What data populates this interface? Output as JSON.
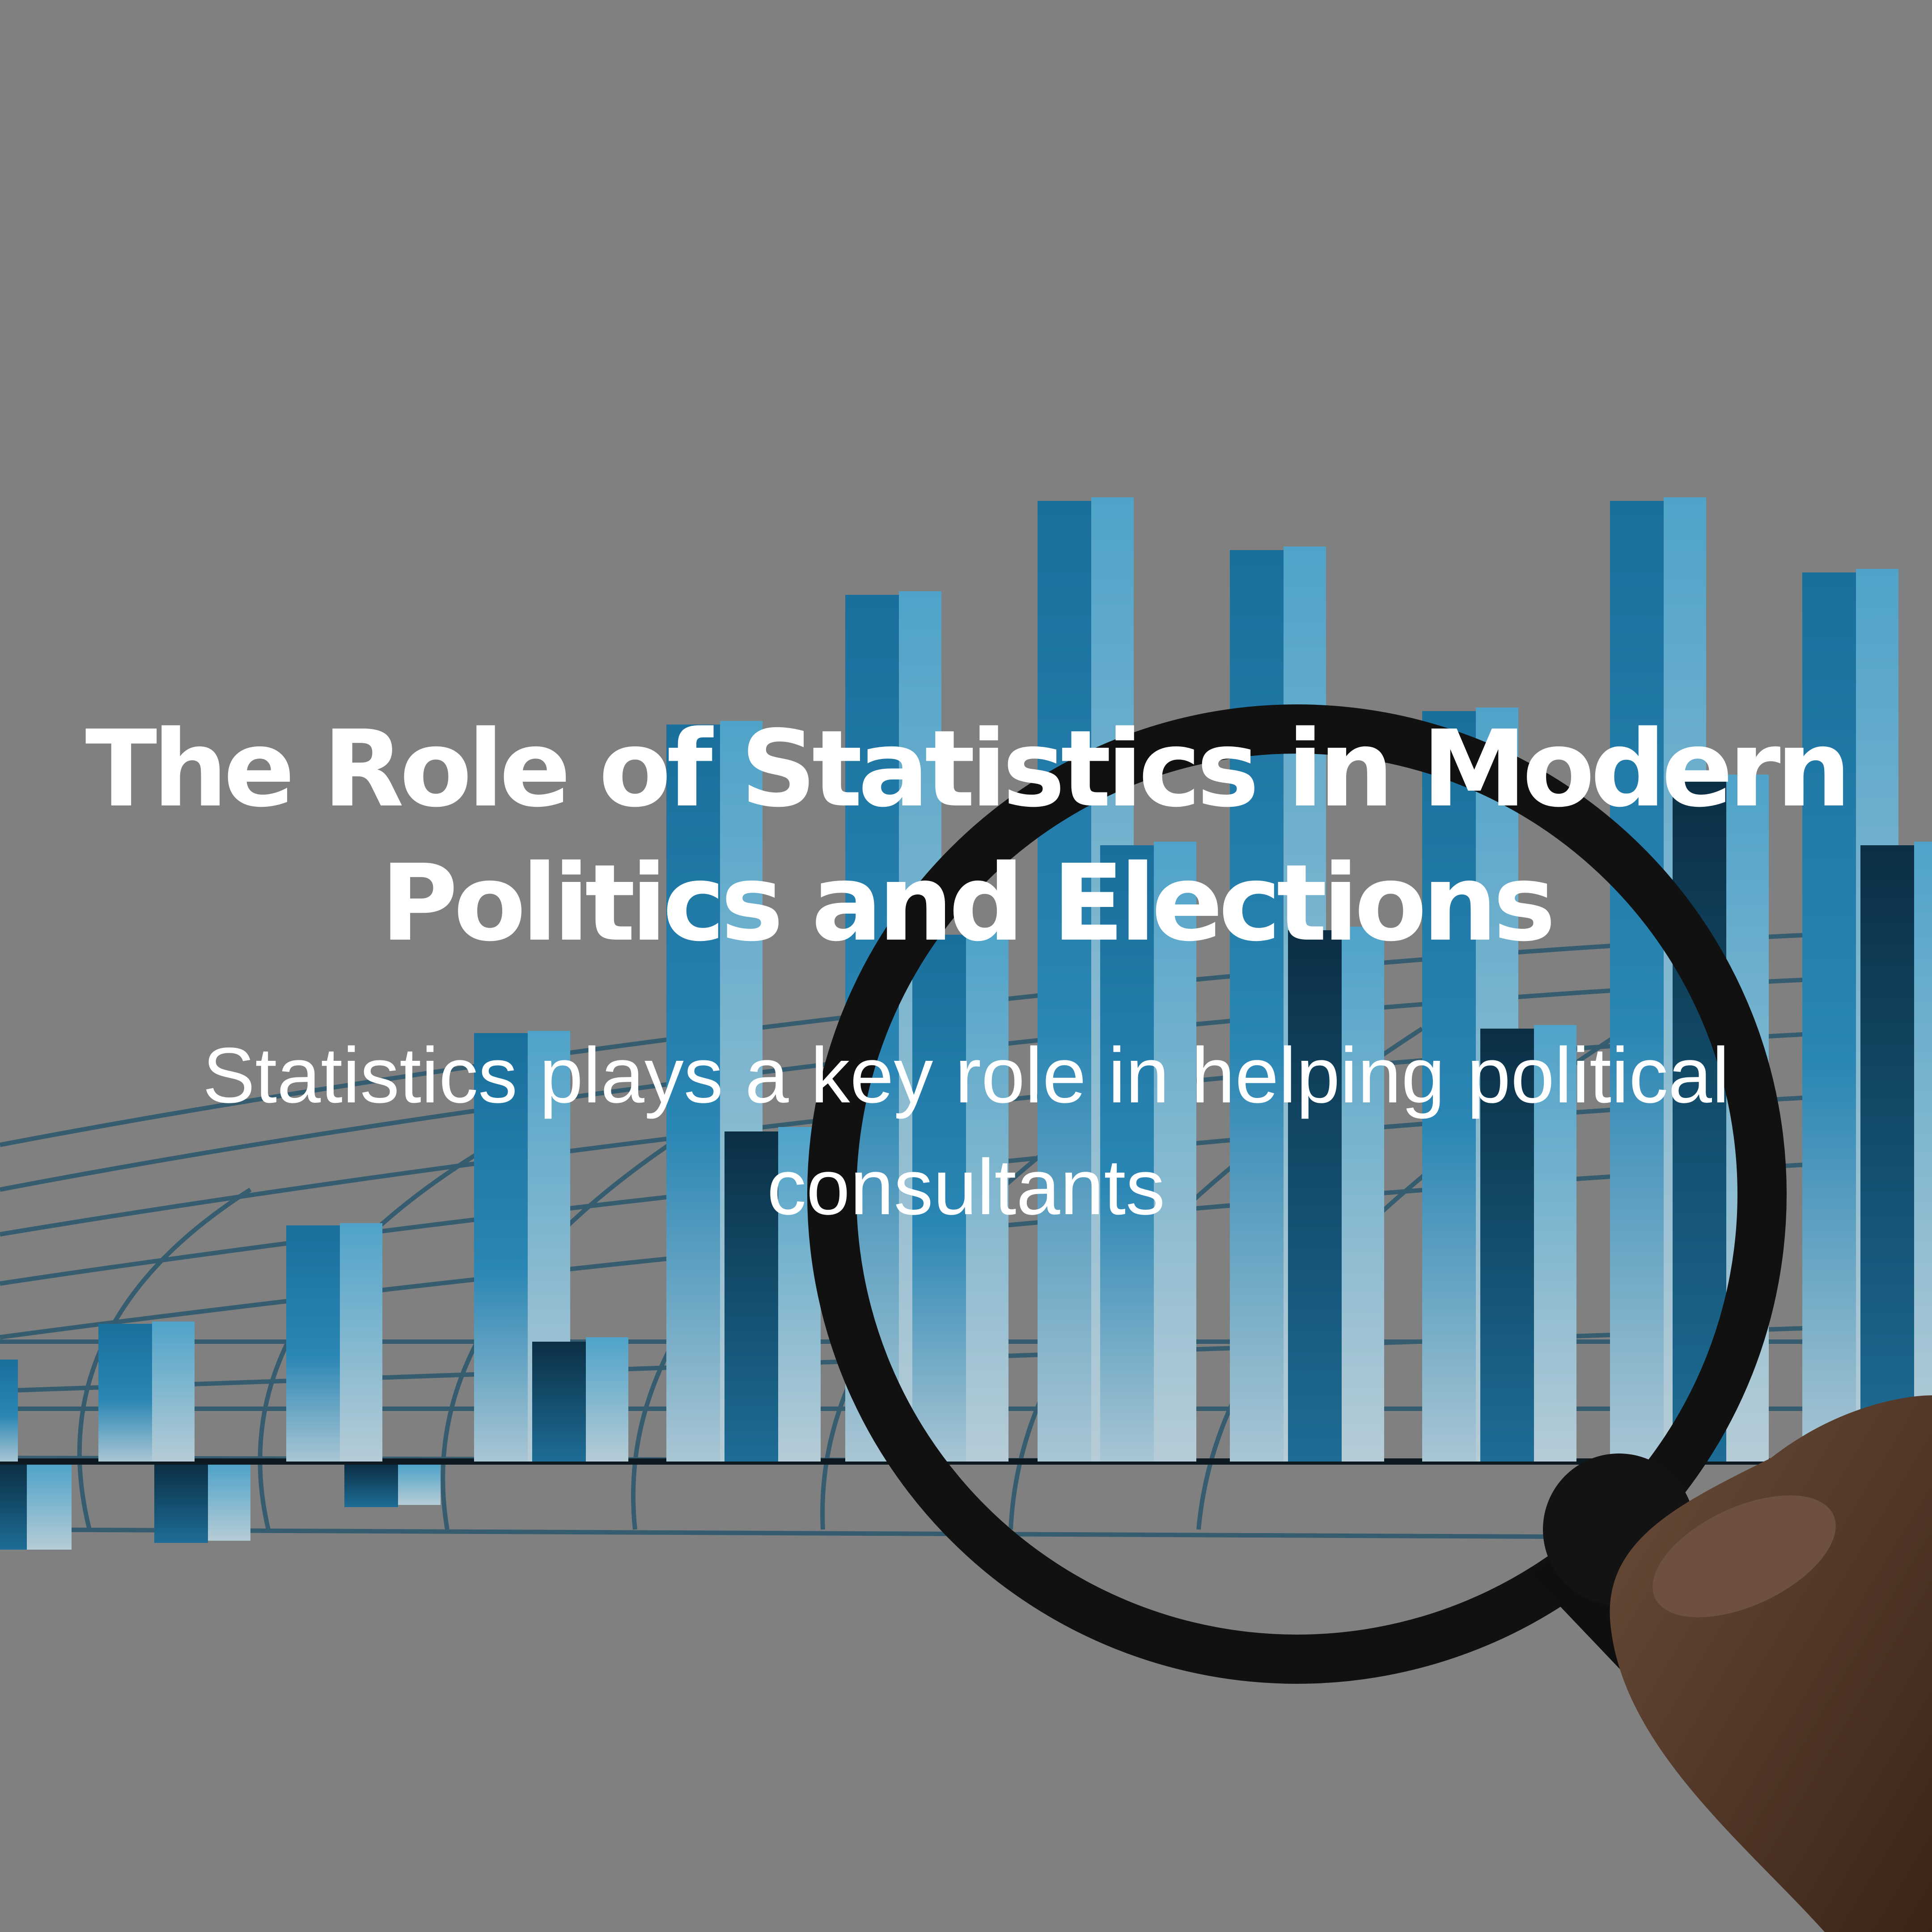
{
  "hero": {
    "title_lines": [
      "The Role of Statistics in Modern",
      "Politics and Elections"
    ],
    "subtitle_lines": [
      "Statistics plays a key role in helping political",
      "consultants"
    ]
  },
  "colors": {
    "background": "#808080",
    "bar_primary": "#1a6f9c",
    "bar_light": "#4fa3c9",
    "bar_dark": "#0b2f45",
    "grid_line": "#2d5a6e",
    "magnifier": "#111111",
    "hand": "#7a5a45",
    "text": "#ffffff"
  },
  "icons": {
    "magnifier": "magnifying-glass-icon"
  }
}
